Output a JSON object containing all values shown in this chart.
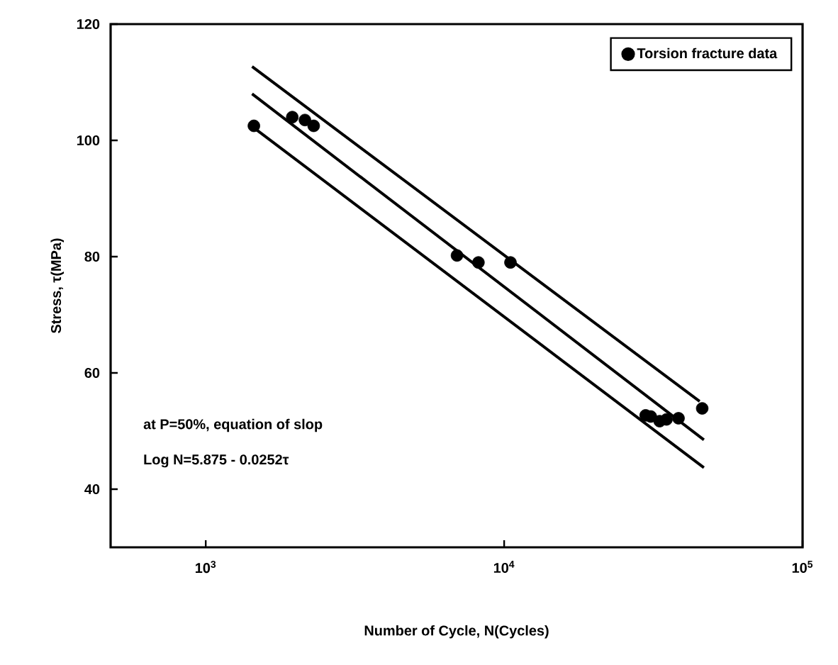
{
  "chart_data": {
    "type": "scatter",
    "xlabel": "Number of Cycle, N(Cycles)",
    "ylabel": "Stress, τ(MPa)",
    "log": "x",
    "xlim": [
      480,
      100000
    ],
    "ylim": [
      30,
      120
    ],
    "xticks": [
      {
        "value": 1000,
        "label": "10$^{3}$"
      },
      {
        "value": 10000,
        "label": "10$^{4}$"
      },
      {
        "value": 100000,
        "label": "10$^{5}$"
      }
    ],
    "yticks": [
      40,
      60,
      80,
      100,
      120
    ],
    "grid": false,
    "legend": "top right",
    "marker": "circle",
    "annotations": [
      "at P=50%, equation of slop",
      "Log N=5.875 - 0.0252τ"
    ],
    "series": [
      {
        "name": "Torsion fracture data",
        "color": "#000000",
        "x": [
          1450,
          1950,
          2150,
          2300,
          6950,
          8200,
          10500,
          29800,
          31000,
          33200,
          35000,
          38400,
          46100
        ],
        "values": [
          102.5,
          104,
          103.5,
          102.5,
          80.2,
          79,
          79,
          52.7,
          52.5,
          51.7,
          52,
          52.2,
          53.9
        ]
      },
      {
        "type": "line",
        "color": "#000000",
        "marker": "none",
        "line_style": "solid",
        "x": [
          1430,
          45200
        ],
        "values": [
          112.7,
          55.1
        ]
      },
      {
        "type": "line",
        "color": "#000000",
        "marker": "none",
        "line_style": "solid",
        "x": [
          1430,
          46700
        ],
        "values": [
          108,
          48.5
        ]
      },
      {
        "type": "line",
        "color": "#000000",
        "marker": "none",
        "line_style": "solid",
        "x": [
          1430,
          46700
        ],
        "values": [
          102.4,
          43.7
        ]
      }
    ]
  }
}
